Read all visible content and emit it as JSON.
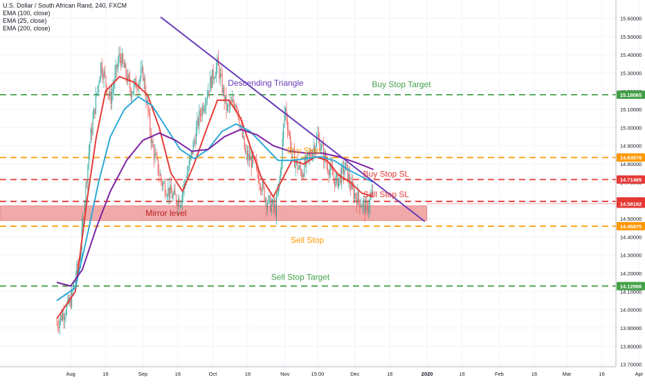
{
  "legend": {
    "title": "U.S. Dollar / South African Rand, 240, FXCM",
    "ema100": "EMA (100, close)",
    "ema25": "EMA (25, close)",
    "ema200": "EMA (200, close)"
  },
  "chart_data": {
    "type": "candlestick",
    "title": "U.S. Dollar / South African Rand, 240, FXCM",
    "y_axis": {
      "min": 13.68,
      "max": 15.66,
      "ticks": [
        "15.60000",
        "15.50000",
        "15.40000",
        "15.30000",
        "15.20000",
        "15.10000",
        "15.00000",
        "14.90000",
        "14.80000",
        "14.70000",
        "14.60000",
        "14.50000",
        "14.40000",
        "14.30000",
        "14.20000",
        "14.10000",
        "14.00000",
        "13.90000",
        "13.80000",
        "13.70000"
      ]
    },
    "x_axis": {
      "ticks": [
        "Aug",
        "16",
        "Sep",
        "16",
        "Oct",
        "16",
        "Nov",
        "15:00",
        "Dec",
        "16",
        "2020",
        "16",
        "Feb",
        "16",
        "Mar",
        "16",
        "Apr"
      ]
    },
    "price_levels": [
      {
        "value": 15.18065,
        "label": "15.18065",
        "color": "#43a047",
        "style": "dashed",
        "annotation": "Buy Stop Target"
      },
      {
        "value": 14.83579,
        "label": "14.83579",
        "color": "#ff9800",
        "style": "dashed",
        "annotation": "Buy Stop"
      },
      {
        "value": 14.71485,
        "label": "14.71485",
        "color": "#e53935",
        "style": "dashed",
        "annotation": "Buy Stop SL"
      },
      {
        "value": 14.59443,
        "label": "14.59443",
        "color": "#e53935",
        "style": "dashed",
        "annotation": "Sell Stop SL"
      },
      {
        "value": 14.58182,
        "label": "14.58182",
        "color": "#e53935",
        "style": "solid-thin",
        "annotation": ""
      },
      {
        "value": 14.45875,
        "label": "14.45875",
        "color": "#ff9800",
        "style": "dashed",
        "annotation": "Sell Stop"
      },
      {
        "value": 14.12986,
        "label": "14.12986",
        "color": "#43a047",
        "style": "dashed",
        "annotation": "Sell Stop Target"
      }
    ],
    "zone": {
      "label": "Mirror level",
      "top": 14.57,
      "bottom": 14.49,
      "color": "#ef9a9a"
    },
    "trendline": {
      "label": "Descending Triangle",
      "color": "#673ab7",
      "start": {
        "x": "Aug 1",
        "y": 15.66
      },
      "end": {
        "x": "Dec 31",
        "y": 14.53
      }
    },
    "price_path": [
      {
        "t": "Jul 26",
        "close": 13.92
      },
      {
        "t": "Aug 1",
        "close": 14.05
      },
      {
        "t": "Aug 5",
        "close": 14.3
      },
      {
        "t": "Aug 9",
        "close": 14.9
      },
      {
        "t": "Aug 14",
        "close": 15.35
      },
      {
        "t": "Aug 18",
        "close": 15.15
      },
      {
        "t": "Aug 22",
        "close": 15.4
      },
      {
        "t": "Aug 27",
        "close": 15.2
      },
      {
        "t": "Sep 1",
        "close": 15.3
      },
      {
        "t": "Sep 5",
        "close": 14.9
      },
      {
        "t": "Sep 9",
        "close": 14.7
      },
      {
        "t": "Sep 14",
        "close": 14.62
      },
      {
        "t": "Sep 17",
        "close": 14.6
      },
      {
        "t": "Sep 21",
        "close": 14.8
      },
      {
        "t": "Sep 25",
        "close": 15.05
      },
      {
        "t": "Sep 30",
        "close": 15.25
      },
      {
        "t": "Oct 3",
        "close": 15.35
      },
      {
        "t": "Oct 7",
        "close": 15.1
      },
      {
        "t": "Oct 11",
        "close": 15.15
      },
      {
        "t": "Oct 15",
        "close": 14.85
      },
      {
        "t": "Oct 19",
        "close": 14.8
      },
      {
        "t": "Oct 24",
        "close": 14.6
      },
      {
        "t": "Oct 28",
        "close": 14.55
      },
      {
        "t": "Oct 30",
        "close": 14.75
      },
      {
        "t": "Nov 1",
        "close": 15.12
      },
      {
        "t": "Nov 4",
        "close": 14.85
      },
      {
        "t": "Nov 8",
        "close": 14.75
      },
      {
        "t": "Nov 12",
        "close": 14.85
      },
      {
        "t": "Nov 15",
        "close": 14.95
      },
      {
        "t": "Nov 19",
        "close": 14.8
      },
      {
        "t": "Nov 23",
        "close": 14.7
      },
      {
        "t": "Nov 27",
        "close": 14.78
      },
      {
        "t": "Nov 30",
        "close": 14.65
      },
      {
        "t": "Dec 3",
        "close": 14.6
      },
      {
        "t": "Dec 6",
        "close": 14.55
      },
      {
        "t": "Dec 9",
        "close": 14.65
      }
    ],
    "series": [
      {
        "name": "EMA (25, close)",
        "color": "#e53935",
        "points": [
          {
            "t": "Jul 26",
            "y": 13.95
          },
          {
            "t": "Aug 3",
            "y": 14.1
          },
          {
            "t": "Aug 8",
            "y": 14.6
          },
          {
            "t": "Aug 12",
            "y": 14.95
          },
          {
            "t": "Aug 16",
            "y": 15.2
          },
          {
            "t": "Aug 22",
            "y": 15.28
          },
          {
            "t": "Aug 28",
            "y": 15.25
          },
          {
            "t": "Sep 3",
            "y": 15.18
          },
          {
            "t": "Sep 8",
            "y": 15.0
          },
          {
            "t": "Sep 13",
            "y": 14.75
          },
          {
            "t": "Sep 18",
            "y": 14.65
          },
          {
            "t": "Sep 23",
            "y": 14.8
          },
          {
            "t": "Sep 28",
            "y": 14.98
          },
          {
            "t": "Oct 3",
            "y": 15.15
          },
          {
            "t": "Oct 8",
            "y": 15.15
          },
          {
            "t": "Oct 13",
            "y": 15.05
          },
          {
            "t": "Oct 17",
            "y": 14.9
          },
          {
            "t": "Oct 22",
            "y": 14.72
          },
          {
            "t": "Oct 27",
            "y": 14.62
          },
          {
            "t": "Oct 31",
            "y": 14.72
          },
          {
            "t": "Nov 4",
            "y": 14.82
          },
          {
            "t": "Nov 9",
            "y": 14.8
          },
          {
            "t": "Nov 14",
            "y": 14.84
          },
          {
            "t": "Nov 19",
            "y": 14.82
          },
          {
            "t": "Nov 24",
            "y": 14.74
          },
          {
            "t": "Nov 29",
            "y": 14.7
          },
          {
            "t": "Dec 4",
            "y": 14.64
          },
          {
            "t": "Dec 9",
            "y": 14.62
          }
        ]
      },
      {
        "name": "EMA (100, close)",
        "color": "#2ba8d6",
        "points": [
          {
            "t": "Jul 26",
            "y": 14.05
          },
          {
            "t": "Aug 3",
            "y": 14.12
          },
          {
            "t": "Aug 8",
            "y": 14.4
          },
          {
            "t": "Aug 13",
            "y": 14.7
          },
          {
            "t": "Aug 18",
            "y": 14.95
          },
          {
            "t": "Aug 24",
            "y": 15.1
          },
          {
            "t": "Aug 30",
            "y": 15.17
          },
          {
            "t": "Sep 5",
            "y": 15.12
          },
          {
            "t": "Sep 11",
            "y": 15.0
          },
          {
            "t": "Sep 17",
            "y": 14.88
          },
          {
            "t": "Sep 23",
            "y": 14.83
          },
          {
            "t": "Sep 29",
            "y": 14.88
          },
          {
            "t": "Oct 5",
            "y": 14.98
          },
          {
            "t": "Oct 11",
            "y": 15.02
          },
          {
            "t": "Oct 17",
            "y": 14.98
          },
          {
            "t": "Oct 23",
            "y": 14.9
          },
          {
            "t": "Oct 29",
            "y": 14.82
          },
          {
            "t": "Nov 4",
            "y": 14.82
          },
          {
            "t": "Nov 10",
            "y": 14.83
          },
          {
            "t": "Nov 16",
            "y": 14.84
          },
          {
            "t": "Nov 22",
            "y": 14.82
          },
          {
            "t": "Nov 28",
            "y": 14.77
          },
          {
            "t": "Dec 4",
            "y": 14.73
          },
          {
            "t": "Dec 9",
            "y": 14.7
          }
        ]
      },
      {
        "name": "EMA (200, close)",
        "color": "#7b1fa2",
        "points": [
          {
            "t": "Jul 26",
            "y": 14.15
          },
          {
            "t": "Aug 1",
            "y": 14.13
          },
          {
            "t": "Aug 6",
            "y": 14.22
          },
          {
            "t": "Aug 12",
            "y": 14.45
          },
          {
            "t": "Aug 18",
            "y": 14.65
          },
          {
            "t": "Aug 25",
            "y": 14.82
          },
          {
            "t": "Sep 1",
            "y": 14.93
          },
          {
            "t": "Sep 8",
            "y": 14.97
          },
          {
            "t": "Sep 15",
            "y": 14.93
          },
          {
            "t": "Sep 22",
            "y": 14.87
          },
          {
            "t": "Sep 29",
            "y": 14.88
          },
          {
            "t": "Oct 6",
            "y": 14.95
          },
          {
            "t": "Oct 13",
            "y": 14.99
          },
          {
            "t": "Oct 20",
            "y": 14.96
          },
          {
            "t": "Oct 27",
            "y": 14.9
          },
          {
            "t": "Nov 3",
            "y": 14.87
          },
          {
            "t": "Nov 10",
            "y": 14.86
          },
          {
            "t": "Nov 17",
            "y": 14.86
          },
          {
            "t": "Nov 24",
            "y": 14.84
          },
          {
            "t": "Dec 1",
            "y": 14.81
          },
          {
            "t": "Dec 9",
            "y": 14.77
          }
        ]
      }
    ],
    "colors": {
      "up": "#26a69a",
      "down": "#ef5350",
      "axis_text": "#131722",
      "grid": "#e6e9ef"
    }
  }
}
